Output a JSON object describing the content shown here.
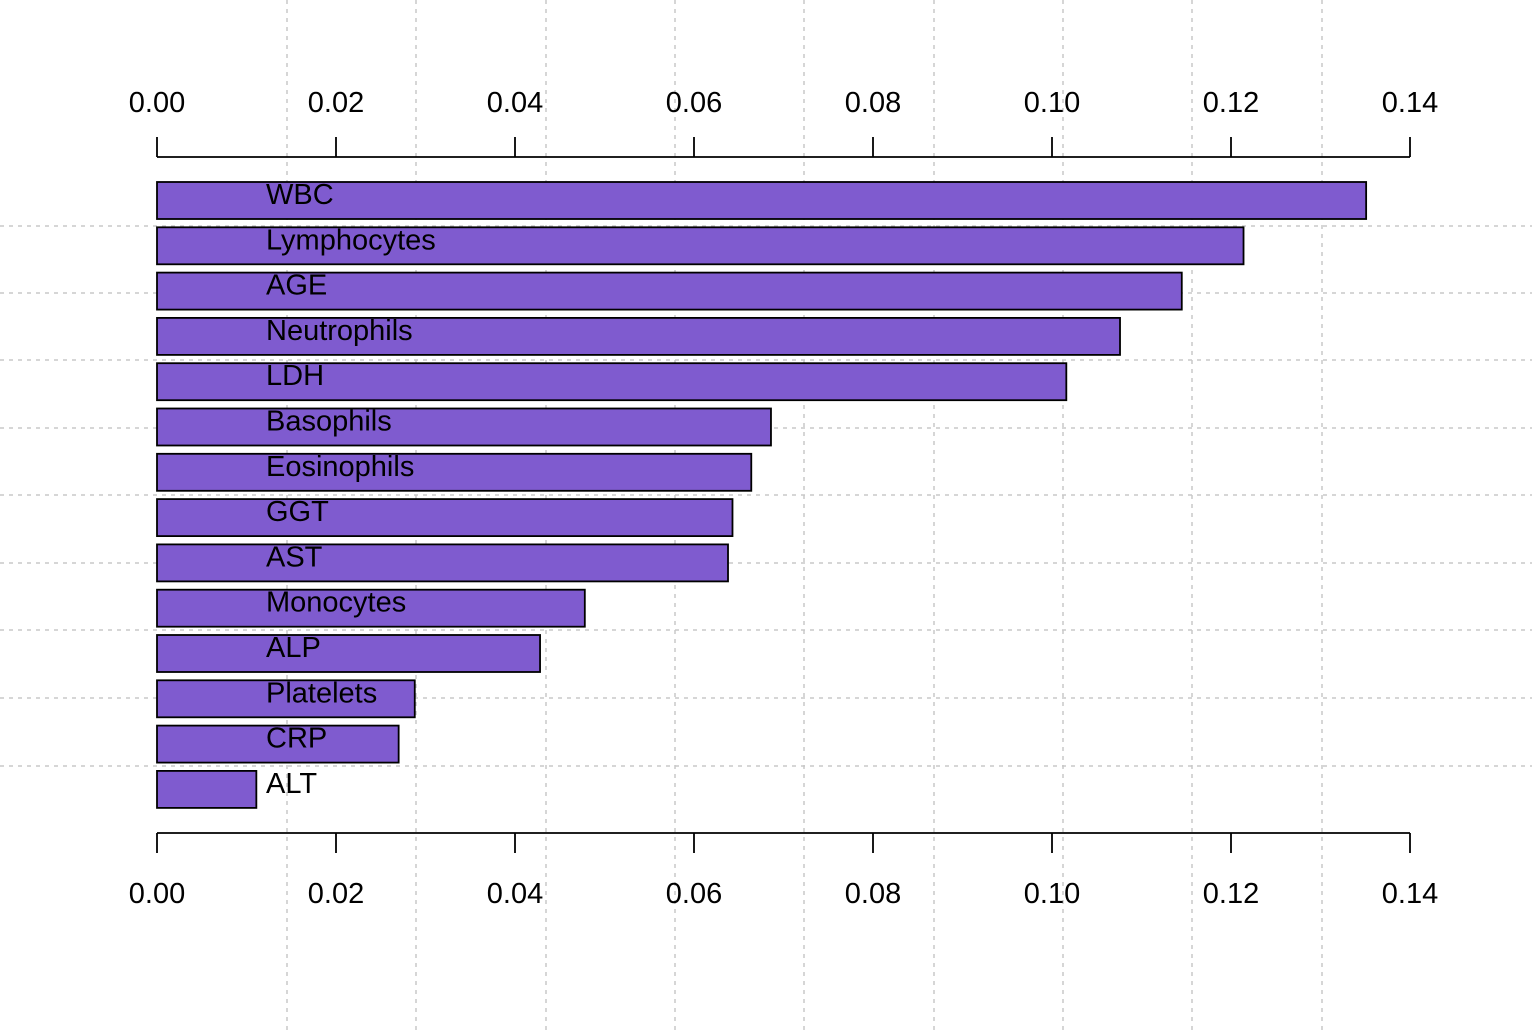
{
  "chart_data": {
    "type": "bar",
    "orientation": "horizontal",
    "title": "",
    "xlabel": "",
    "ylabel": "",
    "categories": [
      "WBC",
      "Lymphocytes",
      "AGE",
      "Neutrophils",
      "LDH",
      "Basophils",
      "Eosinophils",
      "GGT",
      "AST",
      "Monocytes",
      "ALP",
      "Platelets",
      "CRP",
      "ALT"
    ],
    "values": [
      0.1351,
      0.1214,
      0.1145,
      0.1076,
      0.1016,
      0.0686,
      0.0664,
      0.0643,
      0.0638,
      0.0478,
      0.0428,
      0.0288,
      0.027,
      0.0111
    ],
    "xlim": [
      0,
      0.14
    ],
    "x_ticks": [
      "0.00",
      "0.02",
      "0.04",
      "0.06",
      "0.08",
      "0.10",
      "0.12",
      "0.14"
    ],
    "x_axis_positions": [
      "top",
      "bottom"
    ],
    "grid": true,
    "legend": "none",
    "bar_color": "#7f5bcf",
    "grid_color": "#c8c8c8"
  }
}
